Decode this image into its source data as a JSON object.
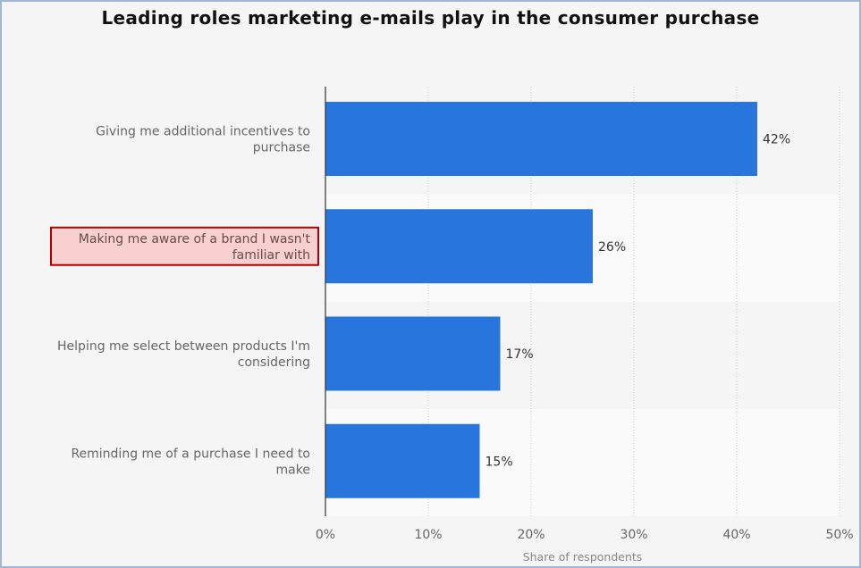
{
  "chart_data": {
    "type": "bar",
    "orientation": "horizontal",
    "title": "Leading roles marketing e-mails play in the consumer purchase",
    "xlabel": "Share of respondents",
    "ylabel": "",
    "xlim": [
      0,
      50
    ],
    "xticks": [
      "0%",
      "10%",
      "20%",
      "30%",
      "40%",
      "50%"
    ],
    "categories": [
      [
        "Giving me additional incentives to",
        "purchase"
      ],
      [
        "Making me aware of a brand I wasn't",
        "familiar with"
      ],
      [
        "Helping me select between products I'm",
        "considering"
      ],
      [
        "Reminding me of a purchase I need to",
        "make"
      ]
    ],
    "values": [
      42,
      26,
      17,
      15
    ],
    "value_labels": [
      "42%",
      "26%",
      "17%",
      "15%"
    ],
    "highlighted_category_index": 1,
    "grid": true,
    "bar_color": "#2876dd",
    "highlight_fill": "#f8d0d0",
    "highlight_border": "#b00000"
  }
}
